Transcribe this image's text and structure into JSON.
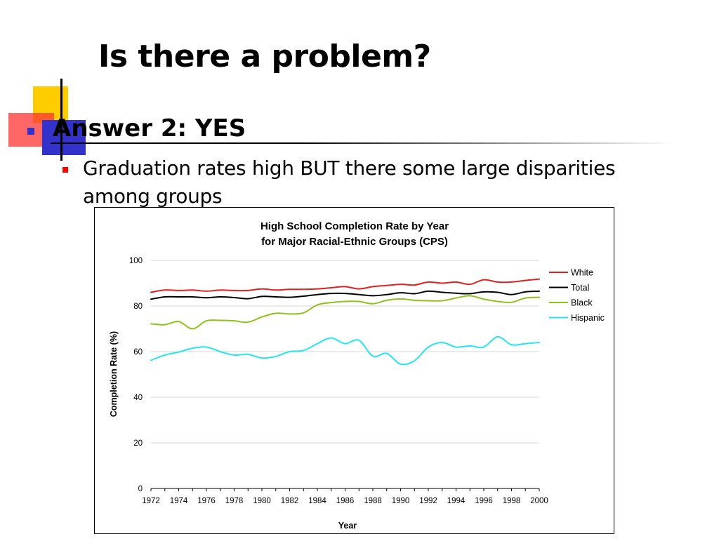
{
  "slide": {
    "title": "Is there a problem?",
    "answer": "Answer 2:  YES",
    "sub_bullet": "Graduation rates high BUT there some large disparities among groups"
  },
  "colors": {
    "White": "#e02020",
    "Total": "#000000",
    "Black": "#8ec21a",
    "Hispanic": "#25e6ee"
  },
  "chart_data": {
    "type": "line",
    "title": "High School Completion Rate by Year",
    "subtitle": "for Major Racial-Ethnic Groups  (CPS)",
    "xlabel": "Year",
    "ylabel": "Completion Rate (%)",
    "xlim": [
      1972,
      2000
    ],
    "ylim": [
      0,
      100
    ],
    "x_ticks": [
      1972,
      1974,
      1976,
      1978,
      1980,
      1982,
      1984,
      1986,
      1988,
      1990,
      1992,
      1994,
      1996,
      1998,
      2000
    ],
    "y_ticks": [
      0,
      20,
      40,
      60,
      80,
      100
    ],
    "grid": true,
    "legend_position": "right",
    "x": [
      1972,
      1973,
      1974,
      1975,
      1976,
      1977,
      1978,
      1979,
      1980,
      1981,
      1982,
      1983,
      1984,
      1985,
      1986,
      1987,
      1988,
      1989,
      1990,
      1991,
      1992,
      1993,
      1994,
      1995,
      1996,
      1997,
      1998,
      1999,
      2000
    ],
    "series": [
      {
        "name": "White",
        "values": [
          86,
          87,
          86.8,
          87,
          86.5,
          87,
          86.8,
          86.8,
          87.5,
          87,
          87.3,
          87.3,
          87.5,
          88,
          88.5,
          87.5,
          88.5,
          89,
          89.5,
          89.2,
          90.5,
          90,
          90.5,
          89.5,
          91.5,
          90.5,
          90.5,
          91.2,
          91.8
        ]
      },
      {
        "name": "Total",
        "values": [
          83,
          84,
          84,
          84,
          83.6,
          84,
          83.7,
          83.2,
          84.2,
          84,
          83.8,
          84.3,
          85,
          85.5,
          85.5,
          85,
          84.5,
          85,
          85.8,
          85.4,
          86.5,
          86,
          85.6,
          85.4,
          86.2,
          86,
          85,
          86.2,
          86.5
        ]
      },
      {
        "name": "Black",
        "values": [
          72.2,
          71.8,
          73.2,
          70,
          73.5,
          73.7,
          73.5,
          72.9,
          75.2,
          76.8,
          76.5,
          77,
          80.5,
          81.5,
          82,
          82,
          81,
          82.5,
          83.1,
          82.5,
          82.3,
          82.3,
          83.5,
          84.5,
          83,
          82,
          81.6,
          83.5,
          83.8
        ]
      },
      {
        "name": "Hispanic",
        "values": [
          56.2,
          58.5,
          59.8,
          61.5,
          62,
          60,
          58.5,
          58.8,
          57.2,
          57.9,
          60,
          60.5,
          63.5,
          66,
          63.5,
          65,
          58,
          59.2,
          54.5,
          56,
          62,
          64,
          62,
          62.5,
          62,
          66.5,
          63,
          63.5,
          64
        ]
      }
    ]
  }
}
